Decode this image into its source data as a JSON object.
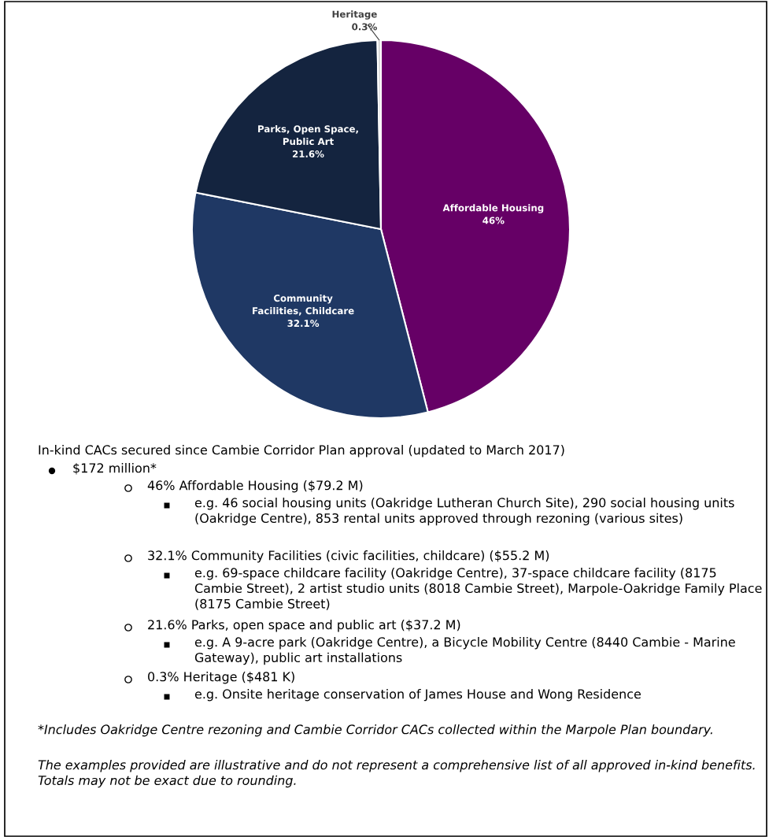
{
  "chart_data": {
    "type": "pie",
    "categories": [
      "Affordable Housing",
      "Community Facilities, Childcare",
      "Parks, Open Space, Public Art",
      "Heritage"
    ],
    "values": [
      46,
      32.1,
      21.6,
      0.3
    ],
    "value_labels": [
      "46%",
      "32.1%",
      "21.6%",
      "0.3%"
    ],
    "colors": [
      "#660066",
      "#1f3864",
      "#14243f",
      "#d9d9d9"
    ],
    "annotations": [
      "In-kind CACs secured since Cambie Corridor Plan approval (updated to March 2017)",
      "$172 million*",
      "46% Affordable Housing ($79.2 M)",
      "e.g. 46 social housing units (Oakridge Lutheran Church Site), 290 social housing units (Oakridge Centre), 853 rental units approved through rezoning (various sites)",
      "32.1% Community Facilities (civic facilities, childcare) ($55.2 M)",
      "e.g. 69-space childcare facility (Oakridge Centre), 37-space childcare facility (8175 Cambie Street), 2 artist studio units (8018 Cambie Street), Marpole-Oakridge Family Place (8175 Cambie Street)",
      "21.6% Parks, open space and public art ($37.2 M)",
      "e.g. A 9-acre park (Oakridge Centre), a Bicycle Mobility Centre (8440 Cambie - Marine Gateway), public art installations",
      "0.3% Heritage ($481 K)",
      "e.g. Onsite heritage conservation of James House and Wong Residence",
      "*Includes Oakridge Centre rezoning and Cambie Corridor CACs collected within the Marpole Plan boundary.",
      "The examples provided are illustrative and do not represent a comprehensive list of all approved in-kind benefits. Totals may not be exact due to rounding."
    ]
  }
}
